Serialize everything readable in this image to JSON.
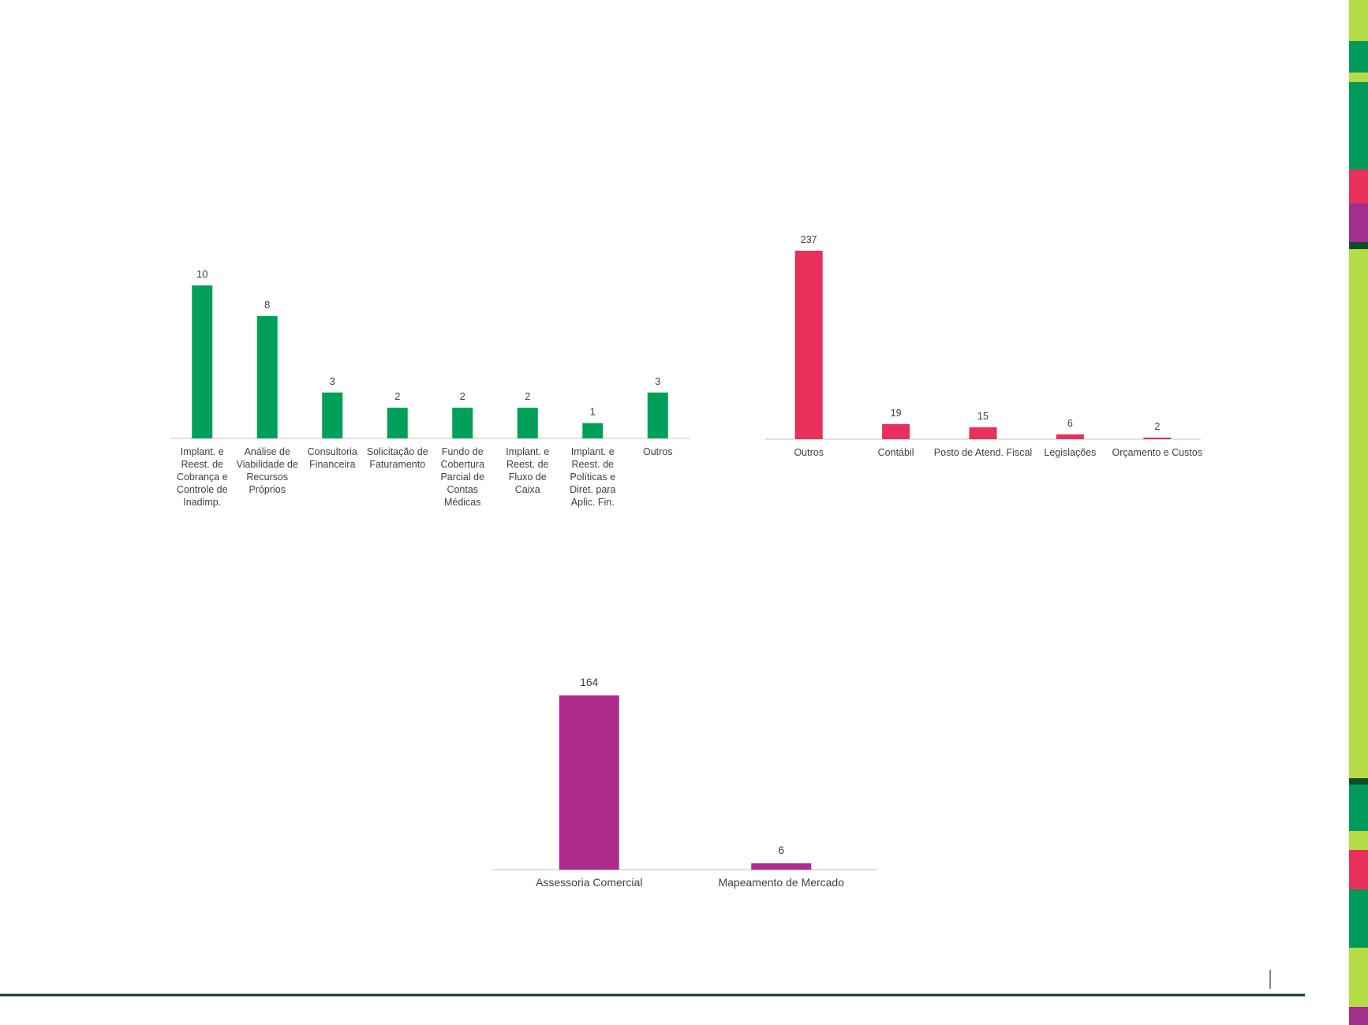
{
  "chart_data": [
    {
      "type": "bar",
      "categories": [
        [
          "Implant. e",
          "Reest. de",
          "Cobrança e",
          "Controle de",
          "Inadimp."
        ],
        [
          "Análise de",
          "Viabilidade de",
          "Recursos",
          "Próprios"
        ],
        [
          "Consultoria",
          "Financeira"
        ],
        [
          "Solicitação de",
          "Faturamento"
        ],
        [
          "Fundo de",
          "Cobertura",
          "Parcial de",
          "Contas",
          "Médicas"
        ],
        [
          "Implant. e",
          "Reest. de",
          "Fluxo de",
          "Caixa"
        ],
        [
          "Implant. e",
          "Reest. de",
          "Políticas e",
          "Diret. para",
          "Aplic. Fin."
        ],
        [
          "Outros"
        ]
      ],
      "values": [
        10,
        8,
        3,
        2,
        2,
        2,
        1,
        3
      ],
      "data_labels": [
        "10",
        "8",
        "3",
        "2",
        "2",
        "2",
        "1",
        "3"
      ],
      "color": "#00A05A",
      "title": "",
      "xlabel": "",
      "ylabel": "",
      "ylim": [
        0,
        10
      ],
      "grid": false,
      "legend": "none"
    },
    {
      "type": "bar",
      "categories": [
        [
          "Outros"
        ],
        [
          "Contábil"
        ],
        [
          "Posto de Atend. Fiscal"
        ],
        [
          "Legislações"
        ],
        [
          "Orçamento e Custos"
        ]
      ],
      "values": [
        237,
        19,
        15,
        6,
        2
      ],
      "data_labels": [
        "237",
        "19",
        "15",
        "6",
        "2"
      ],
      "color": "#E8305A",
      "title": "",
      "xlabel": "",
      "ylabel": "",
      "ylim": [
        0,
        237
      ],
      "grid": false,
      "legend": "none"
    },
    {
      "type": "bar",
      "categories": [
        [
          "Assessoria Comercial"
        ],
        [
          "Mapeamento de Mercado"
        ]
      ],
      "values": [
        164,
        6
      ],
      "data_labels": [
        "164",
        "6"
      ],
      "color": "#AE2D8C",
      "title": "",
      "xlabel": "",
      "ylabel": "",
      "ylim": [
        0,
        164
      ],
      "grid": false,
      "legend": "none"
    }
  ],
  "decor": {
    "sidebar_colors": [
      "#B5DB45",
      "#009A5A",
      "#E8305A",
      "#A2308E",
      "#0E4D2A"
    ],
    "footer_line_color": "#0E3A25",
    "axis_color": "#D0D0D0"
  }
}
